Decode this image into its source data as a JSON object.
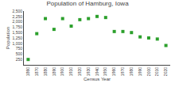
{
  "chart_data": {
    "type": "scatter",
    "title": "Population of Hamburg, Iowa",
    "xlabel": "Census Year",
    "ylabel": "Population",
    "x": [
      1860,
      1870,
      1880,
      1890,
      1900,
      1910,
      1920,
      1930,
      1940,
      1950,
      1960,
      1970,
      1980,
      1990,
      2000,
      2010,
      2020
    ],
    "values": [
      250,
      1450,
      2150,
      1650,
      2150,
      1800,
      2100,
      2150,
      2250,
      2200,
      1550,
      1550,
      1500,
      1300,
      1250,
      1200,
      900
    ],
    "color": "#2ca02c",
    "marker": "square",
    "xlim": [
      1855,
      2025
    ],
    "xticks": [
      1860,
      1870,
      1880,
      1890,
      1900,
      1910,
      1920,
      1930,
      1940,
      1950,
      1960,
      1970,
      1980,
      1990,
      2000,
      2010,
      2020
    ],
    "ylim": [
      0,
      2500
    ],
    "yticks": [
      250,
      500,
      750,
      {
        "value": 1000,
        "label": "1,000"
      },
      {
        "value": 1250,
        "label": "1,250"
      },
      {
        "value": 1500,
        "label": "1,500"
      },
      {
        "value": 1750,
        "label": "1,750"
      },
      {
        "value": 2000,
        "label": "2,000"
      },
      {
        "value": 2250,
        "label": "2,250"
      },
      {
        "value": 2500,
        "label": "2,500"
      }
    ],
    "grid": false
  }
}
